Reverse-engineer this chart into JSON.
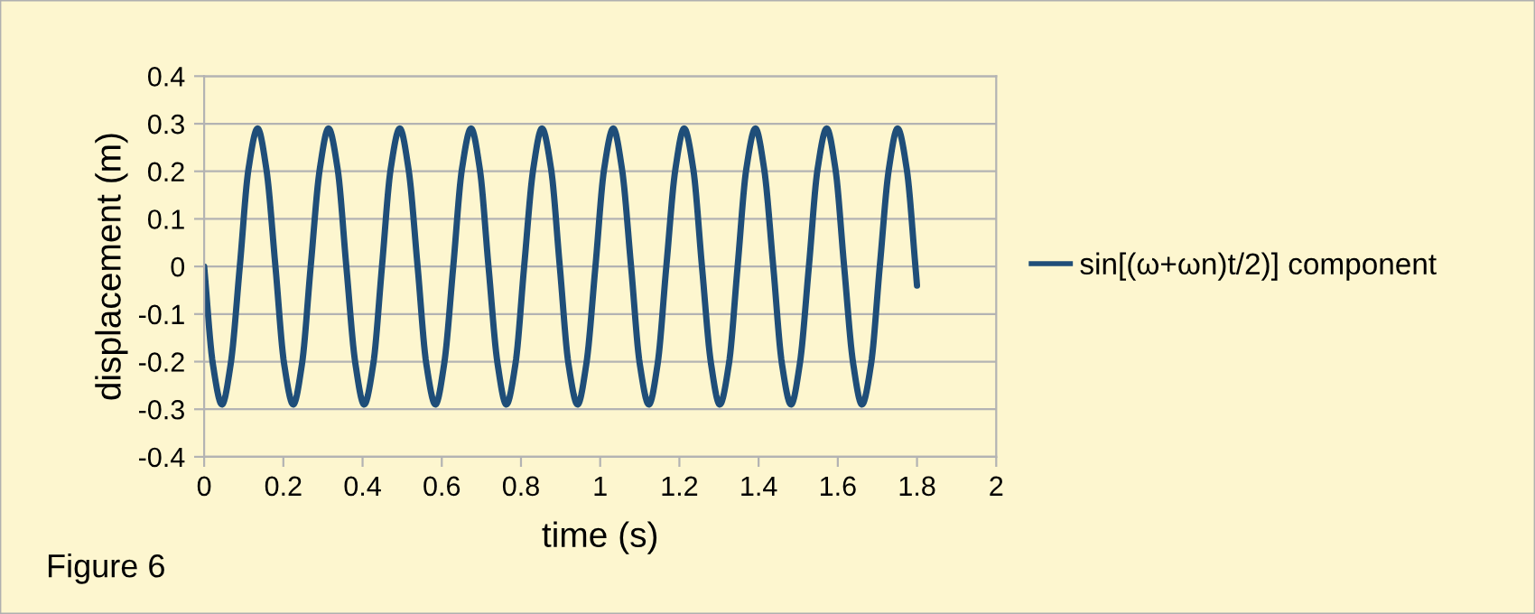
{
  "chart_data": {
    "type": "line",
    "xlabel": "time (s)",
    "ylabel": "displacement (m)",
    "annotations": [
      "Figure 6"
    ],
    "series": [
      {
        "name": "sin[(ω+ωn)t/2)] component",
        "color": "#1f4e79",
        "x": [
          0,
          0.022,
          0.045,
          0.067,
          0.09,
          0.112,
          0.135,
          0.157,
          0.18,
          0.202,
          0.225,
          0.247,
          0.269,
          0.292,
          0.314,
          0.337,
          0.359,
          0.382,
          0.404,
          0.427,
          0.449,
          0.471,
          0.494,
          0.516,
          0.539,
          0.561,
          0.584,
          0.606,
          0.629,
          0.651,
          0.674,
          0.696,
          0.718,
          0.741,
          0.763,
          0.786,
          0.808,
          0.831,
          0.853,
          0.876,
          0.898,
          0.92,
          0.943,
          0.965,
          0.988,
          1.01,
          1.033,
          1.055,
          1.078,
          1.1,
          1.123,
          1.145,
          1.167,
          1.19,
          1.212,
          1.235,
          1.257,
          1.28,
          1.302,
          1.325,
          1.347,
          1.369,
          1.392,
          1.414,
          1.437,
          1.459,
          1.482,
          1.504,
          1.527,
          1.549,
          1.572,
          1.594,
          1.616,
          1.639,
          1.661,
          1.684,
          1.706,
          1.729,
          1.751,
          1.774,
          1.796,
          1.8
        ],
        "values": [
          0,
          -0.205,
          -0.29,
          -0.205,
          0,
          0.205,
          0.29,
          0.205,
          0,
          -0.205,
          -0.29,
          -0.205,
          0,
          0.205,
          0.29,
          0.205,
          0,
          -0.205,
          -0.29,
          -0.205,
          0,
          0.205,
          0.29,
          0.205,
          0,
          -0.205,
          -0.29,
          -0.205,
          0,
          0.205,
          0.29,
          0.205,
          0,
          -0.205,
          -0.29,
          -0.205,
          0,
          0.205,
          0.29,
          0.205,
          0,
          -0.205,
          -0.29,
          -0.205,
          0,
          0.205,
          0.29,
          0.205,
          0,
          -0.205,
          -0.29,
          -0.205,
          0,
          0.205,
          0.29,
          0.205,
          0,
          -0.205,
          -0.29,
          -0.205,
          0,
          0.205,
          0.29,
          0.205,
          0,
          -0.205,
          -0.29,
          -0.205,
          0,
          0.205,
          0.29,
          0.205,
          0,
          -0.205,
          -0.29,
          -0.205,
          0,
          0.205,
          0.29,
          0.205,
          0,
          -0.04
        ]
      }
    ],
    "xlim": [
      0,
      2
    ],
    "xticks": [
      0,
      0.2,
      0.4,
      0.6,
      0.8,
      1,
      1.2,
      1.4,
      1.6,
      1.8,
      2
    ],
    "ylim": [
      -0.4,
      0.4
    ],
    "yticks": [
      -0.4,
      -0.3,
      -0.2,
      -0.1,
      0,
      0.1,
      0.2,
      0.3,
      0.4
    ],
    "grid": "y",
    "legend": "right",
    "marker": "none",
    "line_style": "solid"
  }
}
